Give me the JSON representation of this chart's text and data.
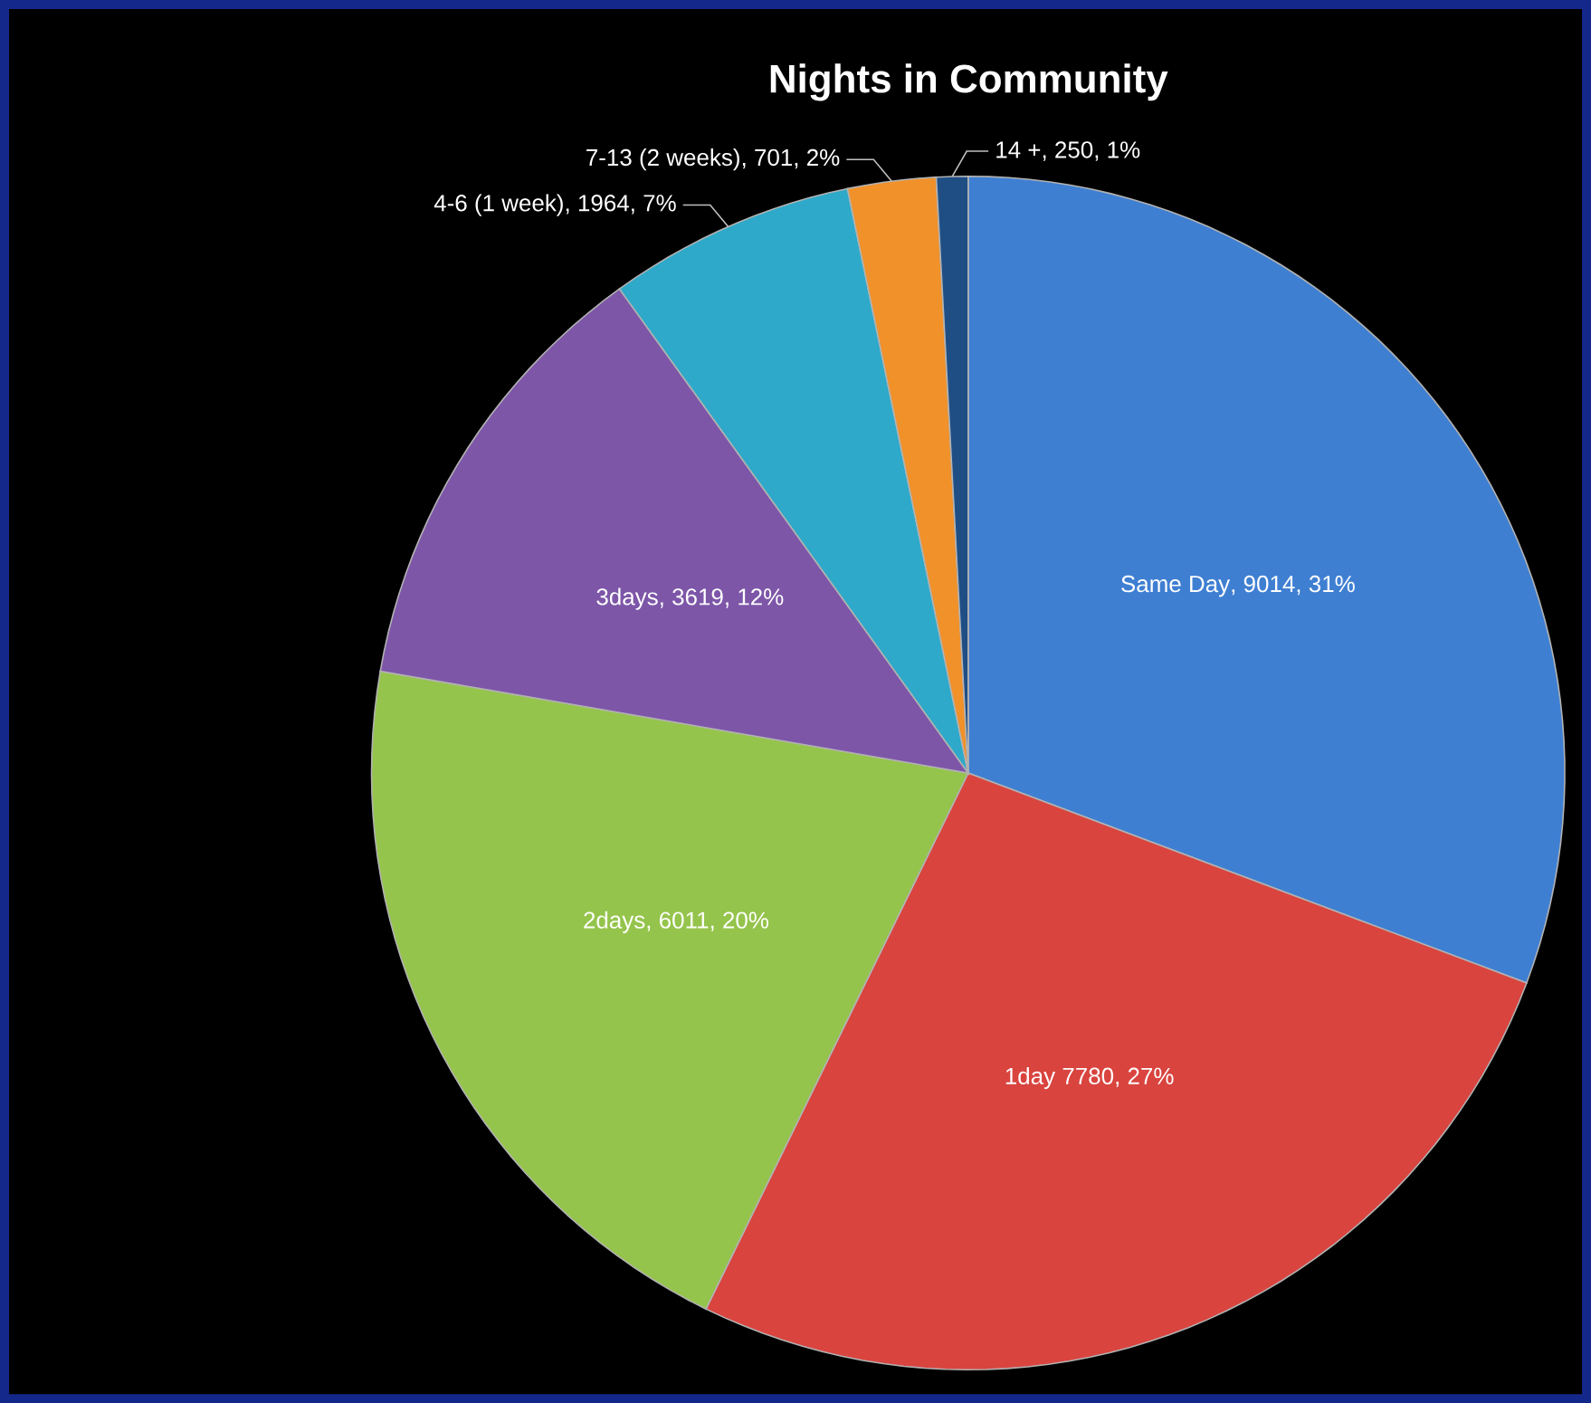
{
  "chart_data": {
    "type": "pie",
    "title": "Nights in Community",
    "categories": [
      "Same Day",
      "1day",
      "2days",
      "3days",
      "4-6 (1 week)",
      "7-13 (2 weeks)",
      "14 +"
    ],
    "values": [
      9014,
      7780,
      6011,
      3619,
      1964,
      701,
      250
    ],
    "value_labels": [
      ", 9014, 31%",
      " 7780, 27%",
      ", 6011, 20%",
      ", 3619, 12%",
      ", 1964, 7%",
      ", 701, 2%",
      ", 250, 1%"
    ],
    "colors": [
      "#3f7fd2",
      "#d9443f",
      "#95c44c",
      "#7d56a8",
      "#2ea9c9",
      "#f0912a",
      "#1f4e85"
    ]
  }
}
